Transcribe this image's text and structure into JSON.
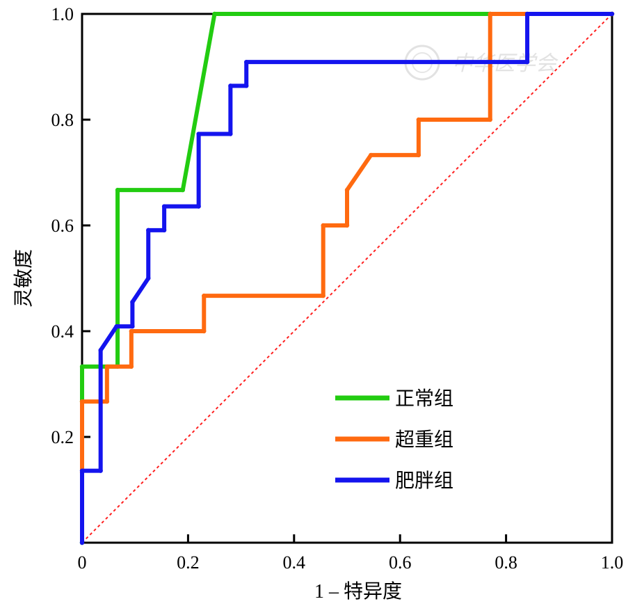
{
  "chart_data": {
    "type": "line",
    "title": "",
    "xlabel": "1 – 特异度",
    "ylabel": "灵敏度",
    "xlim": [
      0,
      1
    ],
    "ylim": [
      0,
      1
    ],
    "x_ticks": [
      "0",
      "0.2",
      "0.4",
      "0.6",
      "0.8",
      "1.0"
    ],
    "y_ticks": [
      "0.2",
      "0.4",
      "0.6",
      "0.8",
      "1.0"
    ],
    "legend_position": "bottom-right",
    "watermark": "中华医学会",
    "reference_line": {
      "points": [
        [
          0,
          0
        ],
        [
          1,
          1
        ]
      ],
      "color": "#ff2020",
      "style": "dotted"
    },
    "series": [
      {
        "name": "正常组",
        "color": "#22cc11",
        "points": [
          [
            0,
            0
          ],
          [
            0,
            0.267
          ],
          [
            0,
            0.333
          ],
          [
            0.067,
            0.333
          ],
          [
            0.067,
            0.667
          ],
          [
            0.19,
            0.667
          ],
          [
            0.25,
            1.0
          ],
          [
            0.77,
            1.0
          ],
          [
            1.0,
            1.0
          ]
        ]
      },
      {
        "name": "超重组",
        "color": "#ff6a10",
        "points": [
          [
            0,
            0.133
          ],
          [
            0,
            0.267
          ],
          [
            0.047,
            0.267
          ],
          [
            0.047,
            0.333
          ],
          [
            0.093,
            0.333
          ],
          [
            0.093,
            0.4
          ],
          [
            0.23,
            0.4
          ],
          [
            0.23,
            0.467
          ],
          [
            0.455,
            0.467
          ],
          [
            0.455,
            0.6
          ],
          [
            0.5,
            0.6
          ],
          [
            0.5,
            0.667
          ],
          [
            0.545,
            0.733
          ],
          [
            0.635,
            0.733
          ],
          [
            0.635,
            0.8
          ],
          [
            0.77,
            0.8
          ],
          [
            0.77,
            1.0
          ],
          [
            1.0,
            1.0
          ]
        ]
      },
      {
        "name": "肥胖组",
        "color": "#1414ee",
        "points": [
          [
            0,
            0
          ],
          [
            0,
            0.136
          ],
          [
            0.035,
            0.136
          ],
          [
            0.035,
            0.364
          ],
          [
            0.065,
            0.409
          ],
          [
            0.095,
            0.409
          ],
          [
            0.095,
            0.455
          ],
          [
            0.125,
            0.5
          ],
          [
            0.125,
            0.591
          ],
          [
            0.155,
            0.591
          ],
          [
            0.155,
            0.636
          ],
          [
            0.22,
            0.636
          ],
          [
            0.22,
            0.773
          ],
          [
            0.28,
            0.773
          ],
          [
            0.28,
            0.864
          ],
          [
            0.31,
            0.864
          ],
          [
            0.31,
            0.909
          ],
          [
            0.84,
            0.909
          ],
          [
            0.84,
            1.0
          ],
          [
            1.0,
            1.0
          ]
        ]
      }
    ]
  }
}
